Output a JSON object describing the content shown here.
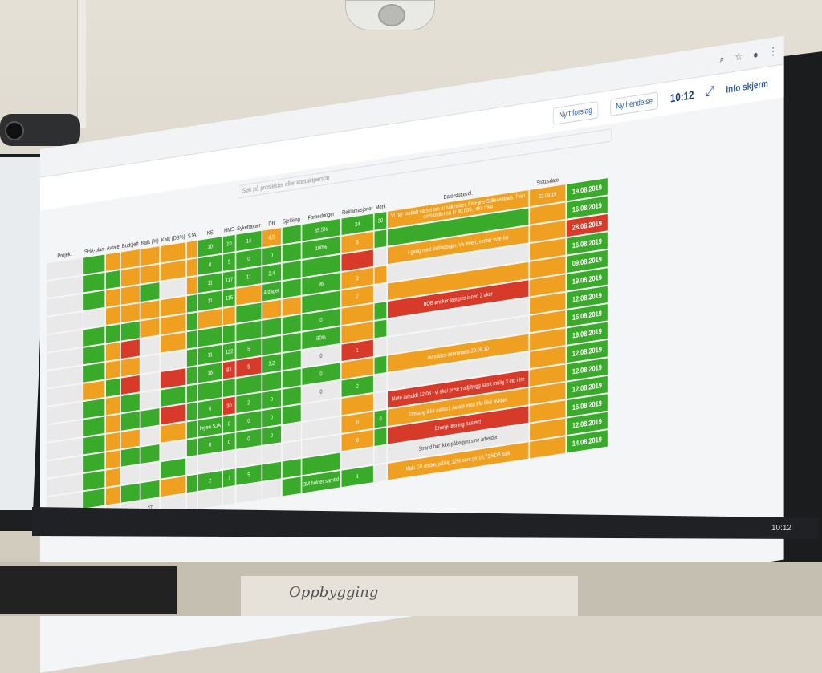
{
  "toolbar": {
    "suggest": "Nytt forslag",
    "new_event": "Ny hendelse",
    "time": "10:12",
    "info": "Info skjerm"
  },
  "search_placeholder": "Søk på prosjekter eller kontaktperson",
  "headers": [
    "Projekt",
    "SHA-plan",
    "Avtale",
    "Budsjett",
    "Kalk (%)",
    "Kalk (DB%)",
    "SJA",
    "KS",
    "HMS",
    "Sykefravær",
    "DB",
    "Sjekking",
    "Forbedringer",
    "Reklamasjoner",
    "Merk",
    "Dato sluttevol.",
    "Statusdato"
  ],
  "rows": [
    {
      "cells": [
        "g",
        "o",
        "o",
        "o",
        "o",
        "o",
        "g",
        "g",
        "g",
        "o",
        "g",
        "g",
        "g",
        "g"
      ],
      "texts": [
        "",
        "",
        "",
        "",
        "",
        "",
        "10",
        "10",
        "14",
        "4,5",
        "",
        "85.5%",
        "24",
        "30"
      ],
      "note": "Vi har mottatt varsel om at sak reises fra Fane Stillesentrale. Tvist omhandler ca kr 30.000,- eks mva",
      "note_color": "o",
      "dato": "22.08.19",
      "status": "19.08.2019",
      "status_color": "g"
    },
    {
      "cells": [
        "g",
        "g",
        "o",
        "o",
        "o",
        "o",
        "g",
        "g",
        "g",
        "g",
        "g",
        "g",
        "o",
        "g"
      ],
      "texts": [
        "",
        "",
        "",
        "",
        "",
        "",
        "0",
        "5",
        "0",
        "0",
        "",
        "100%",
        "5",
        ""
      ],
      "note": "",
      "note_color": "g",
      "dato": "",
      "status": "16.08.2019",
      "status_color": "g"
    },
    {
      "cells": [
        "g",
        "o",
        "o",
        "g",
        "w",
        "o",
        "g",
        "g",
        "g",
        "g",
        "g",
        "g",
        "r",
        "w"
      ],
      "texts": [
        "",
        "",
        "",
        "",
        "",
        "",
        "11",
        "117",
        "11",
        "2,4",
        "",
        "",
        "",
        ""
      ],
      "note": "I gang med sluttoppgjør. Va levert, venter svar fm",
      "note_color": "o",
      "dato": "",
      "status": "28.06.2019",
      "status_color": "r"
    },
    {
      "cells": [
        "w",
        "o",
        "o",
        "o",
        "o",
        "g",
        "g",
        "g",
        "o",
        "g",
        "g",
        "g",
        "o",
        "o"
      ],
      "texts": [
        "",
        "",
        "",
        "",
        "",
        "",
        "11",
        "115",
        "",
        "4 dager",
        "",
        "96",
        "2",
        ""
      ],
      "note": "",
      "note_color": "w",
      "dato": "",
      "status": "16.08.2019",
      "status_color": "g"
    },
    {
      "cells": [
        "g",
        "g",
        "g",
        "o",
        "o",
        "g",
        "o",
        "o",
        "g",
        "o",
        "o",
        "g",
        "o",
        "w"
      ],
      "texts": [
        "",
        "",
        "",
        "",
        "",
        "",
        "",
        "",
        "",
        "",
        "",
        "",
        "2",
        ""
      ],
      "note": "",
      "note_color": "o",
      "dato": "",
      "status": "09.08.2019",
      "status_color": "g"
    },
    {
      "cells": [
        "g",
        "o",
        "r",
        "w",
        "o",
        "g",
        "g",
        "g",
        "g",
        "g",
        "g",
        "g",
        "o",
        "g"
      ],
      "texts": [
        "",
        "",
        "",
        "",
        "",
        "",
        "",
        "",
        "",
        "",
        "",
        "0",
        "",
        ""
      ],
      "note": "BOB ønsker fast pris innen 2 uker",
      "note_color": "r",
      "dato": "",
      "status": "19.08.2019",
      "status_color": "g"
    },
    {
      "cells": [
        "g",
        "o",
        "o",
        "w",
        "w",
        "g",
        "g",
        "g",
        "g",
        "g",
        "g",
        "g",
        "o",
        "g"
      ],
      "texts": [
        "",
        "",
        "",
        "",
        "",
        "",
        "11",
        "122",
        "5",
        "",
        "",
        "90%",
        "",
        ""
      ],
      "note": "",
      "note_color": "w",
      "dato": "",
      "status": "12.08.2019",
      "status_color": "g"
    },
    {
      "cells": [
        "o",
        "g",
        "r",
        "w",
        "r",
        "g",
        "g",
        "r",
        "r",
        "g",
        "g",
        "w",
        "r",
        "w"
      ],
      "texts": [
        "",
        "",
        "",
        "",
        "",
        "",
        "16",
        "81",
        "5",
        "3,2",
        "",
        "0",
        "1",
        ""
      ],
      "note": "",
      "note_color": "w",
      "dato": "",
      "status": "16.08.2019",
      "status_color": "g"
    },
    {
      "cells": [
        "g",
        "o",
        "g",
        "w",
        "g",
        "g",
        "g",
        "g",
        "g",
        "g",
        "g",
        "g",
        "o",
        "g"
      ],
      "texts": [
        "",
        "",
        "",
        "",
        "",
        "",
        "",
        "",
        "",
        "",
        "",
        "0",
        "",
        ""
      ],
      "note": "Avholdes internmøte 20.08.10",
      "note_color": "o",
      "dato": "",
      "status": "19.08.2019",
      "status_color": "g"
    },
    {
      "cells": [
        "g",
        "o",
        "g",
        "g",
        "r",
        "g",
        "g",
        "r",
        "g",
        "g",
        "g",
        "w",
        "g",
        "w"
      ],
      "texts": [
        "",
        "",
        "",
        "",
        "",
        "",
        "6",
        "30",
        "2",
        "0",
        "",
        "0",
        "2",
        ""
      ],
      "note": "",
      "note_color": "w",
      "dato": "",
      "status": "12.08.2019",
      "status_color": "g"
    },
    {
      "cells": [
        "g",
        "o",
        "o",
        "w",
        "o",
        "g",
        "g",
        "g",
        "g",
        "g",
        "g",
        "w",
        "o",
        "w"
      ],
      "texts": [
        "",
        "",
        "",
        "",
        "",
        "",
        "Ingen SJA",
        "0",
        "0",
        "0",
        "",
        "",
        "",
        ""
      ],
      "note": "Møte avholdt 12.08 - vi skal prise tradj bygg samt mulig 3 etg i tre",
      "note_color": "r",
      "dato": "",
      "status": "12.08.2019",
      "status_color": "g"
    },
    {
      "cells": [
        "g",
        "o",
        "g",
        "g",
        "w",
        "g",
        "g",
        "g",
        "g",
        "g",
        "w",
        "w",
        "o",
        "g"
      ],
      "texts": [
        "",
        "",
        "",
        "",
        "",
        "",
        "0",
        "0",
        "0",
        "0",
        "",
        "",
        "0",
        "0"
      ],
      "note": "Omfang ikke avklart. Avtale med FM ikke avklart",
      "note_color": "o",
      "dato": "",
      "status": "12.08.2019",
      "status_color": "g"
    },
    {
      "cells": [
        "g",
        "o",
        "w",
        "w",
        "g",
        "w",
        "w",
        "w",
        "w",
        "w",
        "w",
        "w",
        "o",
        "g"
      ],
      "texts": [
        "",
        "",
        "",
        "",
        "",
        "",
        "",
        "",
        "",
        "",
        "",
        "",
        "0",
        ""
      ],
      "note": "Energi løsning haster!!",
      "note_color": "r",
      "dato": "",
      "status": "16.08.2019",
      "status_color": "g"
    },
    {
      "cells": [
        "g",
        "o",
        "g",
        "g",
        "o",
        "g",
        "g",
        "g",
        "g",
        "g",
        "g",
        "g",
        "w",
        "w"
      ],
      "texts": [
        "",
        "",
        "",
        "",
        "",
        "",
        "2",
        "7",
        "5",
        "",
        "",
        "",
        "",
        ""
      ],
      "note": "Strand har ikke påbegynt sine arbeider",
      "note_color": "w",
      "dato": "",
      "status": "12.08.2019",
      "status_color": "g"
    },
    {
      "cells": [
        "w",
        "w",
        "w",
        "w",
        "w",
        "w",
        "w",
        "w",
        "w",
        "w",
        "g",
        "g",
        "g",
        "w"
      ],
      "texts": [
        "",
        "",
        "",
        "37",
        "",
        "",
        "",
        "",
        "",
        "",
        "",
        "3M holder samtid",
        "1",
        ""
      ],
      "note": "Kalk DB endre, pålsig 12% som gir 10,71%DB kalk",
      "note_color": "o",
      "dato": "",
      "status": "14.08.2019",
      "status_color": "g"
    }
  ],
  "taskbar_time": "10:12",
  "handwriting": "Oppbygging"
}
